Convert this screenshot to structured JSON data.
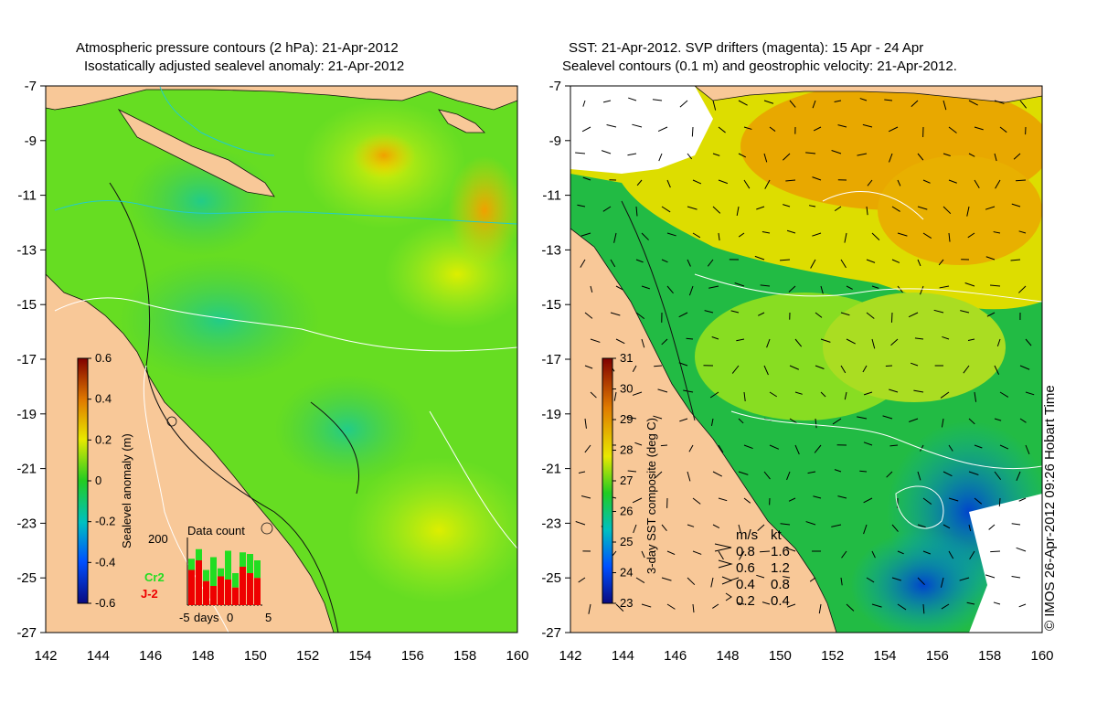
{
  "left_panel": {
    "title_line1": "Atmospheric pressure contours (2 hPa): 21-Apr-2012",
    "title_line2": "Isostatically adjusted sealevel anomaly: 21-Apr-2012",
    "colorbar": {
      "label": "Sealevel anomaly (m)",
      "ticks": [
        "0.6",
        "0.4",
        "0.2",
        "0",
        "-0.2",
        "-0.4",
        "-0.6"
      ],
      "range": [
        -0.6,
        0.6
      ]
    },
    "data_count": {
      "title": "Data count",
      "y_tick": "200",
      "x_ticks": [
        "-5",
        "days",
        "0",
        "5"
      ],
      "series": [
        {
          "name": "Cr2",
          "color": "#22dd22"
        },
        {
          "name": "J-2",
          "color": "#ee0000"
        }
      ],
      "bars": [
        {
          "total": 145,
          "j2": 110
        },
        {
          "total": 175,
          "j2": 140
        },
        {
          "total": 110,
          "j2": 75
        },
        {
          "total": 150,
          "j2": 60
        },
        {
          "total": 115,
          "j2": 90
        },
        {
          "total": 170,
          "j2": 80
        },
        {
          "total": 100,
          "j2": 55
        },
        {
          "total": 165,
          "j2": 120
        },
        {
          "total": 160,
          "j2": 100
        },
        {
          "total": 140,
          "j2": 85
        }
      ]
    }
  },
  "right_panel": {
    "title_line1": "SST: 21-Apr-2012. SVP drifters (magenta): 15 Apr - 24 Apr",
    "title_line2": "Sealevel contours (0.1 m) and geostrophic velocity: 21-Apr-2012.",
    "colorbar": {
      "label": "3-day SST composite (deg C)",
      "ticks": [
        "31",
        "30",
        "29",
        "28",
        "27",
        "26",
        "25",
        "24",
        "23"
      ],
      "range": [
        23,
        31
      ]
    },
    "velocity_legend": {
      "header_ms": "m/s",
      "header_kt": "kt",
      "rows": [
        {
          "ms": "0.8",
          "kt": "1.6"
        },
        {
          "ms": "0.6",
          "kt": "1.2"
        },
        {
          "ms": "0.4",
          "kt": "0.8"
        },
        {
          "ms": "0.2",
          "kt": "0.4"
        }
      ]
    }
  },
  "axes": {
    "x_ticks": [
      "142",
      "144",
      "146",
      "148",
      "150",
      "152",
      "154",
      "156",
      "158",
      "160"
    ],
    "y_ticks": [
      "-7",
      "-9",
      "-11",
      "-13",
      "-15",
      "-17",
      "-19",
      "-21",
      "-23",
      "-25",
      "-27"
    ],
    "lon_range": [
      142,
      160
    ],
    "lat_range": [
      -27,
      -7
    ]
  },
  "credit": "© IMOS 26-Apr-2012 09:26 Hobart Time",
  "colors": {
    "land": "#f8c898",
    "sea_left": "#66dd22",
    "sea_right": "#22bb44"
  }
}
